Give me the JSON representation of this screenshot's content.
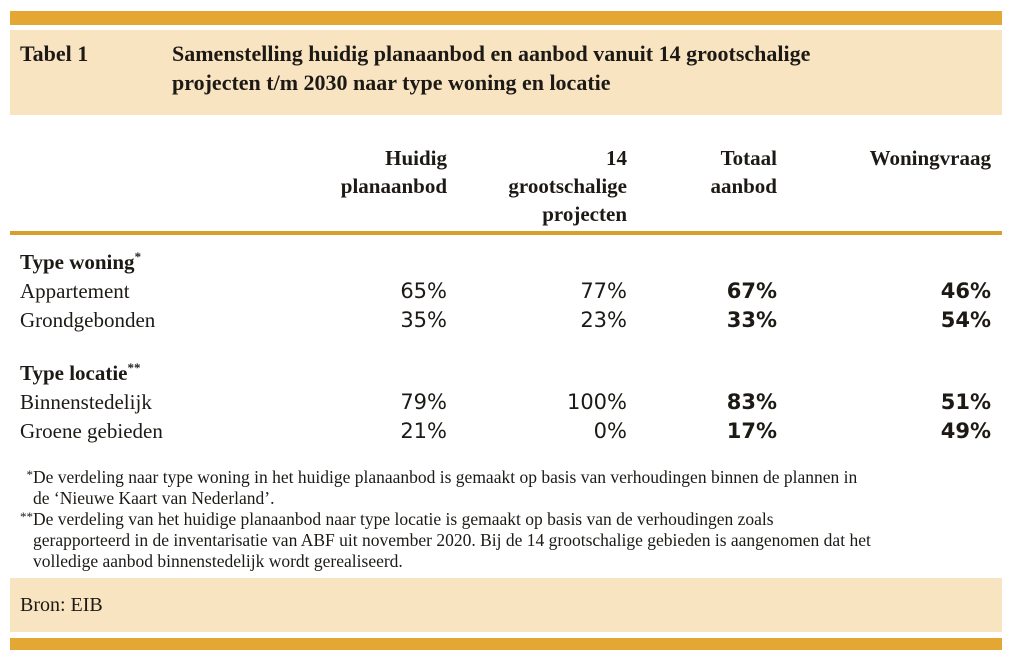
{
  "colors": {
    "accent_gold": "#E4A733",
    "divider_gold": "#D7A02C",
    "band_peach": "#F9E4C2",
    "text": "#1d1a16"
  },
  "caption": {
    "label": "Tabel 1",
    "title": "Samenstelling huidig planaanbod en aanbod vanuit 14 grootschalige\nprojecten t/m 2030 naar type woning en locatie"
  },
  "table": {
    "columns": [
      "Huidig\nplanaanbod",
      "14\ngrootschalige\nprojecten",
      "Totaal\naanbod",
      "Woningvraag"
    ],
    "sections": [
      {
        "heading": "Type woning",
        "marker": "*",
        "rows": [
          {
            "label": "Appartement",
            "values": [
              "65%",
              "77%",
              "67%",
              "46%"
            ]
          },
          {
            "label": "Grondgebonden",
            "values": [
              "35%",
              "23%",
              "33%",
              "54%"
            ]
          }
        ]
      },
      {
        "heading": "Type locatie",
        "marker": "**",
        "rows": [
          {
            "label": "Binnenstedelijk",
            "values": [
              "79%",
              "100%",
              "83%",
              "51%"
            ]
          },
          {
            "label": "Groene gebieden",
            "values": [
              "21%",
              "0%",
              "17%",
              "49%"
            ]
          }
        ]
      }
    ]
  },
  "footnotes": [
    {
      "marker": "*",
      "lines": [
        "De verdeling naar type woning in het huidige planaanbod is gemaakt op basis van verhoudingen binnen de plannen in",
        "de ‘Nieuwe Kaart van Nederland’."
      ]
    },
    {
      "marker": "**",
      "lines": [
        "De verdeling van het huidige planaanbod naar type locatie is gemaakt op basis van de verhoudingen zoals",
        "gerapporteerd in de inventarisatie van ABF uit november 2020. Bij de 14 grootschalige gebieden is aangenomen dat het",
        "volledige aanbod binnenstedelijk wordt gerealiseerd."
      ]
    }
  ],
  "footer": {
    "source": "Bron: EIB"
  }
}
